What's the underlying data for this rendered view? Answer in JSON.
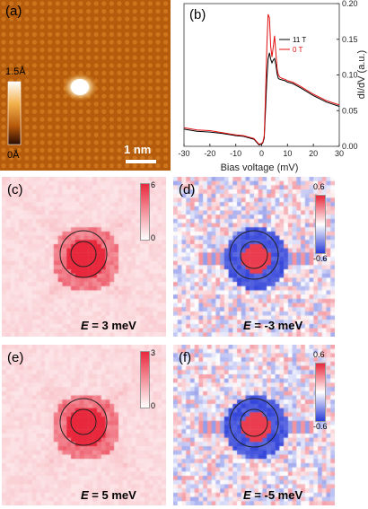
{
  "figure": {
    "panel_a": {
      "label": "(a)",
      "colorbar_top": "1.5Å",
      "colorbar_bottom": "0Å",
      "scalebar": "1 nm"
    },
    "panel_b": {
      "label": "(b)"
    },
    "panel_c": {
      "label": "(c)",
      "cb_top": "6",
      "cb_bottom": "0",
      "energy_var": "E",
      "energy_val": " = 3 meV",
      "map_style": "positive"
    },
    "panel_d": {
      "label": "(d)",
      "cb_top": "0.6",
      "cb_bottom": "-0.6",
      "energy_var": "E",
      "energy_val": " = -3 meV",
      "map_style": "diverging"
    },
    "panel_e": {
      "label": "(e)",
      "cb_top": "3",
      "cb_bottom": "0",
      "energy_var": "E",
      "energy_val": " = 5 meV",
      "map_style": "positive"
    },
    "panel_f": {
      "label": "(f)",
      "cb_top": "0.6",
      "cb_bottom": "-0.6",
      "energy_var": "E",
      "energy_val": " = -5 meV",
      "map_style": "diverging"
    }
  },
  "colors": {
    "topo_dark": "#5a1e00",
    "topo_mid": "#c8650a",
    "topo_bright": "#ffffff",
    "map_red": "#e8283c",
    "map_blue": "#2a3cd8",
    "series_11T": "#000000",
    "series_0T": "#e01010"
  },
  "chart_data": {
    "type": "line",
    "xlabel": "Bias voltage (mV)",
    "ylabel": "dI/dV (a.u.)",
    "xlim": [
      -30,
      30
    ],
    "ylim": [
      0,
      0.2
    ],
    "xticks": [
      "-30",
      "-20",
      "-10",
      "0",
      "10",
      "20",
      "30"
    ],
    "yticks": [
      "0.00",
      "0.05",
      "0.10",
      "0.15",
      "0.20"
    ],
    "legend_position": "top-right",
    "series": [
      {
        "name": "11 T",
        "x": [
          -30,
          -25,
          -20,
          -15,
          -10,
          -7,
          -5,
          -3,
          -2,
          -1,
          0,
          0.5,
          1,
          1.5,
          2,
          2.5,
          3,
          3.5,
          4,
          4.5,
          5,
          5.5,
          6,
          6.5,
          7,
          8,
          9,
          10,
          12,
          15,
          20,
          25,
          30
        ],
        "y": [
          0.024,
          0.021,
          0.02,
          0.018,
          0.015,
          0.014,
          0.012,
          0.01,
          0.006,
          0.002,
          0.003,
          0.005,
          0.012,
          0.05,
          0.094,
          0.122,
          0.131,
          0.122,
          0.117,
          0.121,
          0.123,
          0.114,
          0.101,
          0.095,
          0.094,
          0.093,
          0.092,
          0.09,
          0.088,
          0.082,
          0.071,
          0.062,
          0.056
        ]
      },
      {
        "name": "0 T",
        "x": [
          -30,
          -25,
          -20,
          -15,
          -10,
          -7,
          -5,
          -3,
          -2,
          -1,
          0,
          0.5,
          1,
          1.5,
          2,
          2.5,
          3,
          3.5,
          4,
          4.5,
          5,
          5.5,
          6,
          6.5,
          7,
          8,
          9,
          10,
          12,
          15,
          20,
          25,
          30
        ],
        "y": [
          0.026,
          0.023,
          0.022,
          0.019,
          0.016,
          0.015,
          0.013,
          0.011,
          0.007,
          0.003,
          0.004,
          0.006,
          0.015,
          0.07,
          0.14,
          0.185,
          0.18,
          0.14,
          0.125,
          0.14,
          0.155,
          0.13,
          0.108,
          0.1,
          0.097,
          0.095,
          0.094,
          0.092,
          0.09,
          0.084,
          0.073,
          0.064,
          0.058
        ]
      }
    ]
  }
}
